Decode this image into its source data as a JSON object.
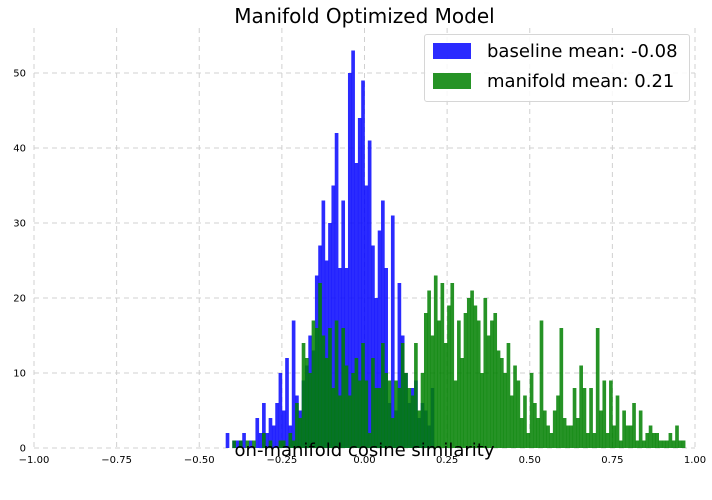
{
  "chart_data": {
    "type": "histogram",
    "title": "Manifold Optimized Model",
    "xlabel": "on-manifold cosine similarity",
    "ylabel": "",
    "xlim": [
      -1.0,
      1.0
    ],
    "ylim": [
      0,
      56
    ],
    "xticks": [
      "−1.00",
      "−0.75",
      "−0.50",
      "−0.25",
      "0.00",
      "0.25",
      "0.50",
      "0.75",
      "1.00"
    ],
    "yticks": [
      "0",
      "10",
      "20",
      "30",
      "40",
      "50"
    ],
    "grid": true,
    "legend_position": "top-right",
    "bin_width": 0.01,
    "series": [
      {
        "name": "baseline mean: -0.08",
        "color": "#0b0bff",
        "alpha": 0.87,
        "bin_start": -0.42,
        "counts": [
          2,
          0,
          1,
          1,
          1,
          2,
          0,
          1,
          0,
          4,
          2,
          6,
          2,
          4,
          3,
          6,
          10,
          5,
          12,
          3,
          17,
          7,
          5,
          9,
          11,
          15,
          13,
          23,
          27,
          33,
          25,
          30,
          35,
          42,
          24,
          33,
          24,
          50,
          53,
          38,
          44,
          49,
          35,
          41,
          27,
          20,
          29,
          33,
          24,
          6,
          31,
          5,
          22,
          15,
          10,
          6,
          8,
          9,
          4,
          6,
          5,
          3,
          8,
          0,
          0
        ]
      },
      {
        "name": "manifold mean: 0.21",
        "color": "#008000",
        "alpha": 0.85,
        "bin_start": -0.4,
        "counts": [
          1,
          0,
          1,
          0,
          1,
          0,
          1,
          0,
          0,
          2,
          0,
          1,
          0,
          0,
          1,
          1,
          0,
          2,
          1,
          6,
          4,
          14,
          12,
          10,
          17,
          16,
          22,
          15,
          12,
          16,
          8,
          17,
          7,
          16,
          11,
          7,
          10,
          12,
          9,
          14,
          9,
          2,
          12,
          8,
          8,
          14,
          10,
          9,
          4,
          9,
          8,
          14,
          10,
          8,
          7,
          14,
          5,
          10,
          18,
          21,
          15,
          23,
          17,
          22,
          14,
          19,
          22,
          9,
          17,
          12,
          18,
          20,
          21,
          19,
          17,
          10,
          20,
          15,
          17,
          18,
          13,
          12,
          10,
          14,
          7,
          11,
          9,
          4,
          7,
          2,
          10,
          6,
          4,
          17,
          5,
          3,
          2,
          5,
          7,
          16,
          4,
          3,
          3,
          8,
          4,
          11,
          8,
          2,
          8,
          2,
          16,
          5,
          9,
          2,
          9,
          3,
          7,
          1,
          5,
          3,
          3,
          6,
          1,
          5,
          1,
          2,
          3,
          2,
          2,
          1,
          1,
          1,
          2,
          1,
          3,
          1,
          1
        ]
      }
    ]
  }
}
